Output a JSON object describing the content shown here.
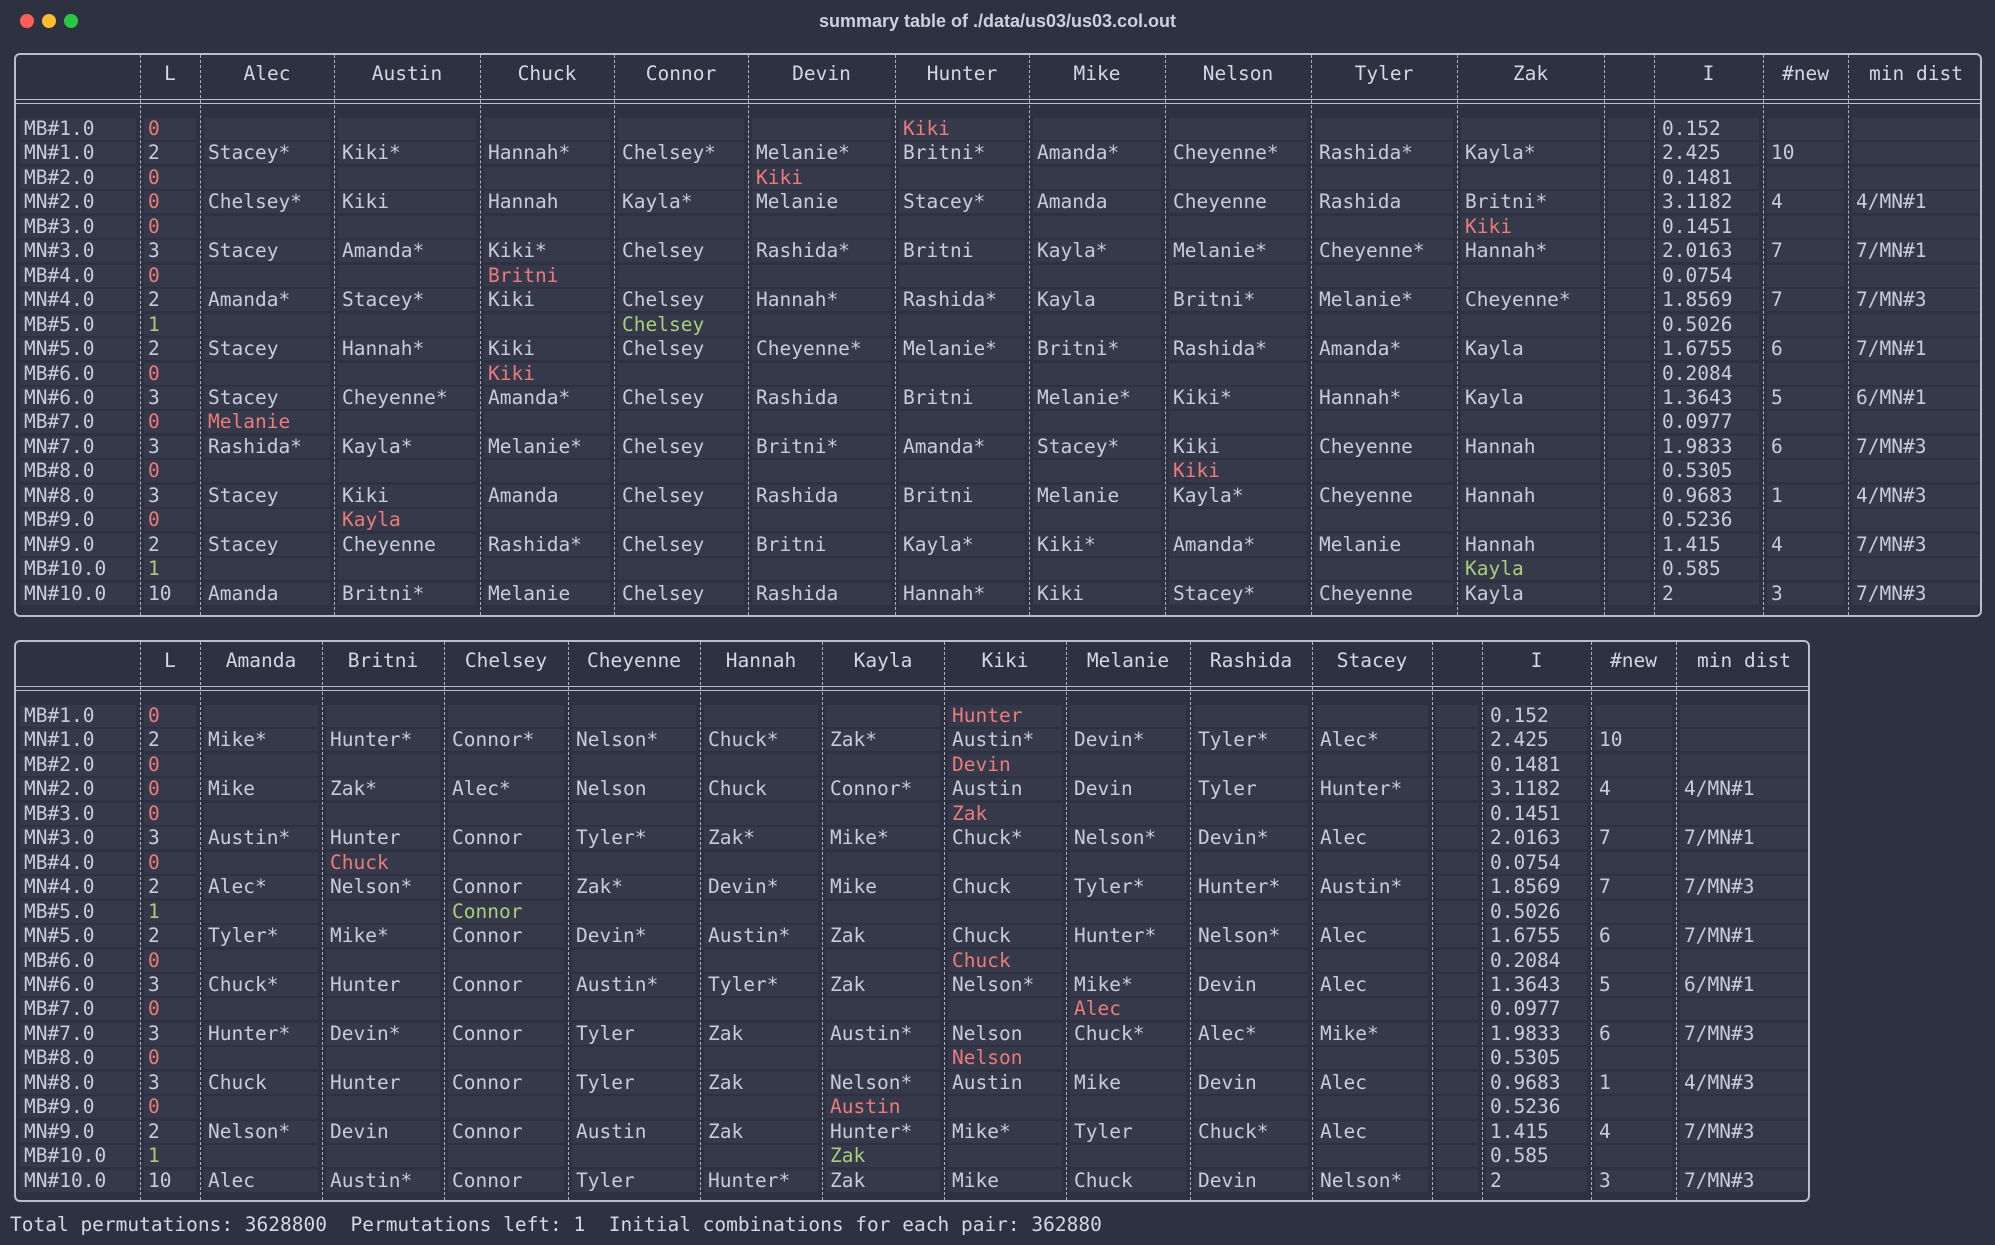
{
  "window": {
    "title": "summary table of ./data/us03/us03.col.out"
  },
  "colors": {
    "background": "#2e3140",
    "cell": "#353949",
    "border": "#b9bdcc",
    "text": "#c9ccd8",
    "red": "#ec7b7b",
    "green": "#a9cf7c"
  },
  "tables": [
    {
      "headers": [
        "",
        "L",
        "Alec",
        "Austin",
        "Chuck",
        "Connor",
        "Devin",
        "Hunter",
        "Mike",
        "Nelson",
        "Tyler",
        "Zak",
        "",
        "I",
        "#new",
        "min dist"
      ],
      "rows": [
        {
          "label": "MB#1.0",
          "L": "0",
          "cells": [
            "",
            "",
            "",
            "",
            "",
            "Kiki",
            "",
            "",
            "",
            ""
          ],
          "I": "0.152",
          "new": "",
          "min": ""
        },
        {
          "label": "MN#1.0",
          "L": "2",
          "cells": [
            "Stacey*",
            "Kiki*",
            "Hannah*",
            "Chelsey*",
            "Melanie*",
            "Britni*",
            "Amanda*",
            "Cheyenne*",
            "Rashida*",
            "Kayla*"
          ],
          "I": "2.425",
          "new": "10",
          "min": ""
        },
        {
          "label": "MB#2.0",
          "L": "0",
          "cells": [
            "",
            "",
            "",
            "",
            "Kiki",
            "",
            "",
            "",
            "",
            ""
          ],
          "I": "0.1481",
          "new": "",
          "min": ""
        },
        {
          "label": "MN#2.0",
          "L": "0",
          "cells": [
            "Chelsey*",
            "Kiki",
            "Hannah",
            "Kayla*",
            "Melanie",
            "Stacey*",
            "Amanda",
            "Cheyenne",
            "Rashida",
            "Britni*"
          ],
          "I": "3.1182",
          "new": "4",
          "min": "4/MN#1"
        },
        {
          "label": "MB#3.0",
          "L": "0",
          "cells": [
            "",
            "",
            "",
            "",
            "",
            "",
            "",
            "",
            "",
            "Kiki"
          ],
          "I": "0.1451",
          "new": "",
          "min": ""
        },
        {
          "label": "MN#3.0",
          "L": "3",
          "cells": [
            "Stacey",
            "Amanda*",
            "Kiki*",
            "Chelsey",
            "Rashida*",
            "Britni",
            "Kayla*",
            "Melanie*",
            "Cheyenne*",
            "Hannah*"
          ],
          "I": "2.0163",
          "new": "7",
          "min": "7/MN#1"
        },
        {
          "label": "MB#4.0",
          "L": "0",
          "cells": [
            "",
            "",
            "Britni",
            "",
            "",
            "",
            "",
            "",
            "",
            ""
          ],
          "I": "0.0754",
          "new": "",
          "min": ""
        },
        {
          "label": "MN#4.0",
          "L": "2",
          "cells": [
            "Amanda*",
            "Stacey*",
            "Kiki",
            "Chelsey",
            "Hannah*",
            "Rashida*",
            "Kayla",
            "Britni*",
            "Melanie*",
            "Cheyenne*"
          ],
          "I": "1.8569",
          "new": "7",
          "min": "7/MN#3"
        },
        {
          "label": "MB#5.0",
          "L": "1",
          "cells": [
            "",
            "",
            "",
            "Chelsey",
            "",
            "",
            "",
            "",
            "",
            ""
          ],
          "I": "0.5026",
          "new": "",
          "min": ""
        },
        {
          "label": "MN#5.0",
          "L": "2",
          "cells": [
            "Stacey",
            "Hannah*",
            "Kiki",
            "Chelsey",
            "Cheyenne*",
            "Melanie*",
            "Britni*",
            "Rashida*",
            "Amanda*",
            "Kayla"
          ],
          "I": "1.6755",
          "new": "6",
          "min": "7/MN#1"
        },
        {
          "label": "MB#6.0",
          "L": "0",
          "cells": [
            "",
            "",
            "Kiki",
            "",
            "",
            "",
            "",
            "",
            "",
            ""
          ],
          "I": "0.2084",
          "new": "",
          "min": ""
        },
        {
          "label": "MN#6.0",
          "L": "3",
          "cells": [
            "Stacey",
            "Cheyenne*",
            "Amanda*",
            "Chelsey",
            "Rashida",
            "Britni",
            "Melanie*",
            "Kiki*",
            "Hannah*",
            "Kayla"
          ],
          "I": "1.3643",
          "new": "5",
          "min": "6/MN#1"
        },
        {
          "label": "MB#7.0",
          "L": "0",
          "cells": [
            "Melanie",
            "",
            "",
            "",
            "",
            "",
            "",
            "",
            "",
            ""
          ],
          "I": "0.0977",
          "new": "",
          "min": ""
        },
        {
          "label": "MN#7.0",
          "L": "3",
          "cells": [
            "Rashida*",
            "Kayla*",
            "Melanie*",
            "Chelsey",
            "Britni*",
            "Amanda*",
            "Stacey*",
            "Kiki",
            "Cheyenne",
            "Hannah"
          ],
          "I": "1.9833",
          "new": "6",
          "min": "7/MN#3"
        },
        {
          "label": "MB#8.0",
          "L": "0",
          "cells": [
            "",
            "",
            "",
            "",
            "",
            "",
            "",
            "Kiki",
            "",
            ""
          ],
          "I": "0.5305",
          "new": "",
          "min": ""
        },
        {
          "label": "MN#8.0",
          "L": "3",
          "cells": [
            "Stacey",
            "Kiki",
            "Amanda",
            "Chelsey",
            "Rashida",
            "Britni",
            "Melanie",
            "Kayla*",
            "Cheyenne",
            "Hannah"
          ],
          "I": "0.9683",
          "new": "1",
          "min": "4/MN#3"
        },
        {
          "label": "MB#9.0",
          "L": "0",
          "cells": [
            "",
            "Kayla",
            "",
            "",
            "",
            "",
            "",
            "",
            "",
            ""
          ],
          "I": "0.5236",
          "new": "",
          "min": ""
        },
        {
          "label": "MN#9.0",
          "L": "2",
          "cells": [
            "Stacey",
            "Cheyenne",
            "Rashida*",
            "Chelsey",
            "Britni",
            "Kayla*",
            "Kiki*",
            "Amanda*",
            "Melanie",
            "Hannah"
          ],
          "I": "1.415",
          "new": "4",
          "min": "7/MN#3"
        },
        {
          "label": "MB#10.0",
          "L": "1",
          "cells": [
            "",
            "",
            "",
            "",
            "",
            "",
            "",
            "",
            "",
            "Kayla"
          ],
          "I": "0.585",
          "new": "",
          "min": ""
        },
        {
          "label": "MN#10.0",
          "L": "10",
          "cells": [
            "Amanda",
            "Britni*",
            "Melanie",
            "Chelsey",
            "Rashida",
            "Hannah*",
            "Kiki",
            "Stacey*",
            "Cheyenne",
            "Kayla"
          ],
          "I": "2",
          "new": "3",
          "min": "7/MN#3"
        }
      ]
    },
    {
      "headers": [
        "",
        "L",
        "Amanda",
        "Britni",
        "Chelsey",
        "Cheyenne",
        "Hannah",
        "Kayla",
        "Kiki",
        "Melanie",
        "Rashida",
        "Stacey",
        "",
        "I",
        "#new",
        "min dist"
      ],
      "rows": [
        {
          "label": "MB#1.0",
          "L": "0",
          "cells": [
            "",
            "",
            "",
            "",
            "",
            "",
            "Hunter",
            "",
            "",
            ""
          ],
          "I": "0.152",
          "new": "",
          "min": ""
        },
        {
          "label": "MN#1.0",
          "L": "2",
          "cells": [
            "Mike*",
            "Hunter*",
            "Connor*",
            "Nelson*",
            "Chuck*",
            "Zak*",
            "Austin*",
            "Devin*",
            "Tyler*",
            "Alec*"
          ],
          "I": "2.425",
          "new": "10",
          "min": ""
        },
        {
          "label": "MB#2.0",
          "L": "0",
          "cells": [
            "",
            "",
            "",
            "",
            "",
            "",
            "Devin",
            "",
            "",
            ""
          ],
          "I": "0.1481",
          "new": "",
          "min": ""
        },
        {
          "label": "MN#2.0",
          "L": "0",
          "cells": [
            "Mike",
            "Zak*",
            "Alec*",
            "Nelson",
            "Chuck",
            "Connor*",
            "Austin",
            "Devin",
            "Tyler",
            "Hunter*"
          ],
          "I": "3.1182",
          "new": "4",
          "min": "4/MN#1"
        },
        {
          "label": "MB#3.0",
          "L": "0",
          "cells": [
            "",
            "",
            "",
            "",
            "",
            "",
            "Zak",
            "",
            "",
            ""
          ],
          "I": "0.1451",
          "new": "",
          "min": ""
        },
        {
          "label": "MN#3.0",
          "L": "3",
          "cells": [
            "Austin*",
            "Hunter",
            "Connor",
            "Tyler*",
            "Zak*",
            "Mike*",
            "Chuck*",
            "Nelson*",
            "Devin*",
            "Alec"
          ],
          "I": "2.0163",
          "new": "7",
          "min": "7/MN#1"
        },
        {
          "label": "MB#4.0",
          "L": "0",
          "cells": [
            "",
            "Chuck",
            "",
            "",
            "",
            "",
            "",
            "",
            "",
            ""
          ],
          "I": "0.0754",
          "new": "",
          "min": ""
        },
        {
          "label": "MN#4.0",
          "L": "2",
          "cells": [
            "Alec*",
            "Nelson*",
            "Connor",
            "Zak*",
            "Devin*",
            "Mike",
            "Chuck",
            "Tyler*",
            "Hunter*",
            "Austin*"
          ],
          "I": "1.8569",
          "new": "7",
          "min": "7/MN#3"
        },
        {
          "label": "MB#5.0",
          "L": "1",
          "cells": [
            "",
            "",
            "Connor",
            "",
            "",
            "",
            "",
            "",
            "",
            ""
          ],
          "I": "0.5026",
          "new": "",
          "min": ""
        },
        {
          "label": "MN#5.0",
          "L": "2",
          "cells": [
            "Tyler*",
            "Mike*",
            "Connor",
            "Devin*",
            "Austin*",
            "Zak",
            "Chuck",
            "Hunter*",
            "Nelson*",
            "Alec"
          ],
          "I": "1.6755",
          "new": "6",
          "min": "7/MN#1"
        },
        {
          "label": "MB#6.0",
          "L": "0",
          "cells": [
            "",
            "",
            "",
            "",
            "",
            "",
            "Chuck",
            "",
            "",
            ""
          ],
          "I": "0.2084",
          "new": "",
          "min": ""
        },
        {
          "label": "MN#6.0",
          "L": "3",
          "cells": [
            "Chuck*",
            "Hunter",
            "Connor",
            "Austin*",
            "Tyler*",
            "Zak",
            "Nelson*",
            "Mike*",
            "Devin",
            "Alec"
          ],
          "I": "1.3643",
          "new": "5",
          "min": "6/MN#1"
        },
        {
          "label": "MB#7.0",
          "L": "0",
          "cells": [
            "",
            "",
            "",
            "",
            "",
            "",
            "",
            "Alec",
            "",
            ""
          ],
          "I": "0.0977",
          "new": "",
          "min": ""
        },
        {
          "label": "MN#7.0",
          "L": "3",
          "cells": [
            "Hunter*",
            "Devin*",
            "Connor",
            "Tyler",
            "Zak",
            "Austin*",
            "Nelson",
            "Chuck*",
            "Alec*",
            "Mike*"
          ],
          "I": "1.9833",
          "new": "6",
          "min": "7/MN#3"
        },
        {
          "label": "MB#8.0",
          "L": "0",
          "cells": [
            "",
            "",
            "",
            "",
            "",
            "",
            "Nelson",
            "",
            "",
            ""
          ],
          "I": "0.5305",
          "new": "",
          "min": ""
        },
        {
          "label": "MN#8.0",
          "L": "3",
          "cells": [
            "Chuck",
            "Hunter",
            "Connor",
            "Tyler",
            "Zak",
            "Nelson*",
            "Austin",
            "Mike",
            "Devin",
            "Alec"
          ],
          "I": "0.9683",
          "new": "1",
          "min": "4/MN#3"
        },
        {
          "label": "MB#9.0",
          "L": "0",
          "cells": [
            "",
            "",
            "",
            "",
            "",
            "Austin",
            "",
            "",
            "",
            ""
          ],
          "I": "0.5236",
          "new": "",
          "min": ""
        },
        {
          "label": "MN#9.0",
          "L": "2",
          "cells": [
            "Nelson*",
            "Devin",
            "Connor",
            "Austin",
            "Zak",
            "Hunter*",
            "Mike*",
            "Tyler",
            "Chuck*",
            "Alec"
          ],
          "I": "1.415",
          "new": "4",
          "min": "7/MN#3"
        },
        {
          "label": "MB#10.0",
          "L": "1",
          "cells": [
            "",
            "",
            "",
            "",
            "",
            "Zak",
            "",
            "",
            "",
            ""
          ],
          "I": "0.585",
          "new": "",
          "min": ""
        },
        {
          "label": "MN#10.0",
          "L": "10",
          "cells": [
            "Alec",
            "Austin*",
            "Connor",
            "Tyler",
            "Hunter*",
            "Zak",
            "Mike",
            "Chuck",
            "Devin",
            "Nelson*"
          ],
          "I": "2",
          "new": "3",
          "min": "7/MN#3"
        }
      ]
    }
  ],
  "status": {
    "total": "Total permutations: 3628800",
    "left": "Permutations left: 1",
    "initial": "Initial combinations for each pair: 362880"
  }
}
